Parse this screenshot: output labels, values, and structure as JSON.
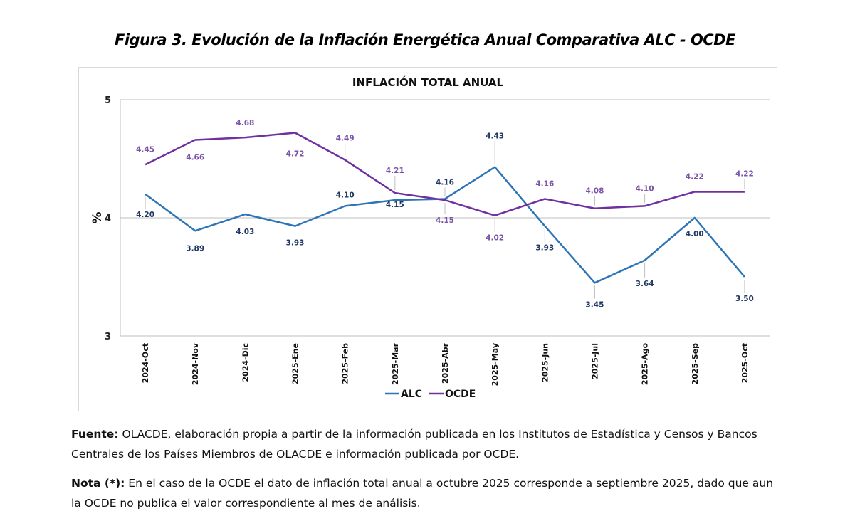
{
  "figure_title": "Figura 3. Evolución de la Inflación Energética Anual Comparativa ALC - OCDE",
  "source": {
    "label": "Fuente:",
    "text": " OLACDE, elaboración propia a partir de la información publicada en los Institutos de Estadística y Censos y Bancos Centrales de los Países Miembros de OLACDE e información publicada por OCDE."
  },
  "note": {
    "label": "Nota (*):",
    "text": " En el caso de la OCDE el dato de inflación total anual a octubre 2025 corresponde a septiembre 2025, dado que aun la OCDE no publica el valor correspondiente al mes de análisis."
  },
  "chart_data": {
    "type": "line",
    "title": "INFLACIÓN TOTAL ANUAL",
    "xlabel": "",
    "ylabel": "%",
    "ylim": [
      3,
      5
    ],
    "yticks": [
      3,
      4,
      5
    ],
    "grid": true,
    "legend": "bottom",
    "categories": [
      "2024-Oct",
      "2024-Nov",
      "2024-Dic",
      "2025-Ene",
      "2025-Feb",
      "2025-Mar",
      "2025-Abr",
      "2025-May",
      "2025-Jun",
      "2025-Jul",
      "2025-Ago",
      "2025-Sep",
      "2025-Oct"
    ],
    "series": [
      {
        "name": "ALC",
        "color": "#2e75b6",
        "label_color": "#1f3864",
        "values": [
          4.2,
          3.89,
          4.03,
          3.93,
          4.1,
          4.15,
          4.16,
          4.43,
          3.93,
          3.45,
          3.64,
          4.0,
          3.5
        ],
        "labels": [
          "4.20",
          "3.89",
          "4.03",
          "3.93",
          "4.10",
          "4.15",
          "4.16",
          "4.43",
          "3.93",
          "3.45",
          "3.64",
          "4.00",
          "3.50"
        ]
      },
      {
        "name": "OCDE",
        "color": "#7030a0",
        "label_color": "#7a54a8",
        "values": [
          4.45,
          4.66,
          4.68,
          4.72,
          4.49,
          4.21,
          4.15,
          4.02,
          4.16,
          4.08,
          4.1,
          4.22,
          4.22
        ],
        "labels": [
          "4.45",
          "4.66",
          "4.68",
          "4.72",
          "4.49",
          "4.21",
          "4.15",
          "4.02",
          "4.16",
          "4.08",
          "4.10",
          "4.22",
          "4.22"
        ]
      }
    ]
  }
}
